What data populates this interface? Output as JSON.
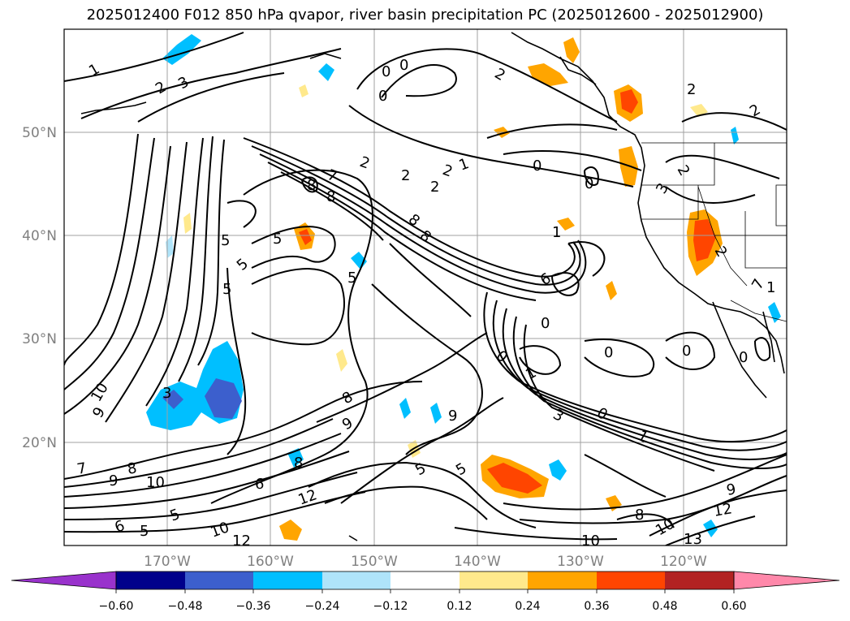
{
  "title": "2025012400 F012 850 hPa qvapor, river basin precipitation PC (2025012600 - 2025012900)",
  "map": {
    "lat_ticks": [
      "50°N",
      "40°N",
      "30°N",
      "20°N"
    ],
    "lon_ticks": [
      "170°W",
      "160°W",
      "150°W",
      "140°W",
      "130°W",
      "120°W"
    ],
    "contour_labels": [
      "1",
      "2",
      "3",
      "2",
      "0",
      "0",
      "2",
      "1",
      "2",
      "2",
      "1",
      "0",
      "0",
      "2",
      "3",
      "2",
      "8",
      "8",
      "7",
      "2",
      "2",
      "8",
      "8",
      "5",
      "5",
      "5",
      "5",
      "5",
      "9",
      "10",
      "3",
      "9",
      "8",
      "9",
      "6",
      "8",
      "7",
      "9",
      "8",
      "10",
      "5",
      "6",
      "5",
      "12",
      "12",
      "10",
      "5",
      "5",
      "6",
      "0",
      "1",
      "3",
      "0",
      "1",
      "0",
      "0",
      "0",
      "7",
      "13",
      "12",
      "9",
      "8",
      "10",
      "10",
      "2",
      "1",
      "0",
      "0"
    ],
    "colors": {
      "contour": "#000000",
      "grid": "#a0a0a0",
      "coast": "#000000"
    }
  },
  "colorbar": {
    "levels": [
      "−0.60",
      "−0.48",
      "−0.36",
      "−0.24",
      "−0.12",
      "0.12",
      "0.24",
      "0.36",
      "0.48",
      "0.60"
    ],
    "colors": [
      "#9932cc",
      "#00008b",
      "#3c5fcd",
      "#00bfff",
      "#afe4fa",
      "#ffffff",
      "#ffe98c",
      "#ffa500",
      "#ff4500",
      "#b22222",
      "#ff88aa"
    ]
  }
}
